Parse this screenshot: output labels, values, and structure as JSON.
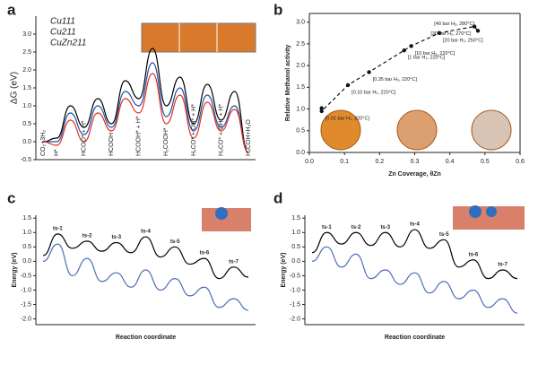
{
  "chart_data": [
    {
      "type": "line",
      "label": "a",
      "ylabel": "ΔG (eV)",
      "ylim": [
        -0.5,
        3.5
      ],
      "yticks": [
        {
          "value": -0.5,
          "label": "-0.5"
        },
        {
          "value": 0,
          "label": "0.0"
        },
        {
          "value": 0.5,
          "label": "0.5"
        },
        {
          "value": 1,
          "label": "1.0"
        },
        {
          "value": 1.5,
          "label": "1.5"
        },
        {
          "value": 2,
          "label": "2.0"
        },
        {
          "value": 2.5,
          "label": "2.5"
        },
        {
          "value": 3,
          "label": "3.0"
        }
      ],
      "categories": [
        "CO₂+3H₂",
        "H*",
        null,
        "HCOO* + H*",
        null,
        "HCOOH",
        null,
        "HCOOH* + H*",
        null,
        "H₂COOH*",
        null,
        "H₂CO* + OH* + H*",
        null,
        "H₃CO* + OH* + H*",
        null,
        "H₃COH+H₂O"
      ],
      "series": [
        {
          "name": "Cu111",
          "color": "#000000",
          "values": [
            0,
            0.1,
            1.0,
            0.4,
            1.2,
            0.5,
            1.7,
            1.2,
            2.6,
            1.0,
            1.8,
            0.5,
            1.6,
            0.6,
            1.4,
            -0.3
          ]
        },
        {
          "name": "Cu211",
          "color": "#1f4fa8",
          "values": [
            0,
            0.0,
            0.8,
            0.2,
            1.0,
            0.4,
            1.4,
            1.0,
            2.2,
            0.7,
            1.5,
            0.3,
            1.3,
            0.4,
            1.0,
            -0.3
          ]
        },
        {
          "name": "CuZn211",
          "color": "#e0301e",
          "values": [
            0,
            -0.1,
            0.6,
            0.0,
            0.8,
            0.3,
            1.2,
            0.8,
            1.9,
            0.5,
            1.3,
            0.1,
            1.1,
            0.3,
            0.9,
            -0.3
          ]
        }
      ]
    },
    {
      "type": "scatter",
      "label": "b",
      "xlabel": "Zn Coverage, θZn",
      "ylabel": "Relative Methanol activity",
      "xlim": [
        0,
        0.6
      ],
      "xticks": [
        {
          "value": 0,
          "label": "0.0"
        },
        0.1,
        0.2,
        0.3,
        0.4,
        0.5,
        0.6
      ],
      "ylim": [
        0,
        3.2
      ],
      "yticks": [
        {
          "value": 0,
          "label": "0.0"
        },
        0.5,
        {
          "value": 1,
          "label": "1.0"
        },
        1.5,
        {
          "value": 2,
          "label": "2.0"
        },
        2.5,
        {
          "value": 3,
          "label": "3.0"
        }
      ],
      "color": "#111111",
      "x": [
        0.035,
        0.035,
        0.11,
        0.17,
        0.27,
        0.29,
        0.37,
        0.47,
        0.48
      ],
      "values": [
        1.02,
        0.95,
        1.55,
        1.85,
        2.35,
        2.45,
        2.75,
        2.9,
        2.8
      ],
      "point_labels": [
        null,
        "[0.01 bar H₂, 220°C]",
        "[0.10 bar H₂, 220°C]",
        "[0.35 bar H₂, 220°C]",
        "[1 bar H₂, 220°C]",
        "[10 bar H₂, 220°C]",
        "[20 bar H₂, 250°C]",
        "[30 bar H₂, 270°C]",
        "[40 bar H₂, 280°C]"
      ]
    },
    {
      "type": "line",
      "label": "c",
      "ylabel": "Energy (eV)",
      "xlabel": "Reaction coordinate",
      "ylim": [
        -2.2,
        1.6
      ],
      "yticks": [
        {
          "value": -2,
          "label": "-2.0"
        },
        -1.5,
        {
          "value": -1,
          "label": "-1.0"
        },
        -0.5,
        {
          "value": 0,
          "label": "0.0"
        },
        0.5,
        {
          "value": 1,
          "label": "1.0"
        },
        1.5
      ],
      "categories": [
        null,
        "ts-1",
        null,
        "ts-2",
        null,
        "ts-3",
        null,
        "ts-4",
        null,
        "ts-5",
        null,
        "ts-6",
        null,
        "ts-7",
        null
      ],
      "series": [
        {
          "color": "#000000",
          "values": [
            0.2,
            0.95,
            0.45,
            0.7,
            0.35,
            0.65,
            0.3,
            0.85,
            0.15,
            0.5,
            -0.1,
            0.1,
            -0.6,
            -0.2,
            -0.55
          ]
        },
        {
          "color": "#4a6fb5",
          "values": [
            0.0,
            0.6,
            -0.5,
            0.1,
            -0.7,
            -0.4,
            -0.9,
            -0.3,
            -1.0,
            -0.6,
            -1.2,
            -0.9,
            -1.6,
            -1.3,
            -1.7
          ]
        }
      ]
    },
    {
      "type": "line",
      "label": "d",
      "ylabel": "Energy (eV)",
      "xlabel": "Reaction coordinate",
      "ylim": [
        -2.2,
        1.6
      ],
      "yticks": [
        {
          "value": -2,
          "label": "-2.0"
        },
        -1.5,
        {
          "value": -1,
          "label": "-1.0"
        },
        -0.5,
        {
          "value": 0,
          "label": "0.0"
        },
        0.5,
        {
          "value": 1,
          "label": "1.0"
        },
        1.5
      ],
      "categories": [
        null,
        "ts-1",
        null,
        "ts-2",
        null,
        "ts-3",
        null,
        "ts-4",
        null,
        "ts-5",
        null,
        "ts-6",
        null,
        "ts-7",
        null
      ],
      "series": [
        {
          "color": "#000000",
          "values": [
            0.3,
            1.0,
            0.6,
            1.0,
            0.55,
            1.0,
            0.5,
            1.1,
            0.45,
            0.75,
            -0.2,
            0.05,
            -0.6,
            -0.3,
            -0.6
          ]
        },
        {
          "color": "#4a6fb5",
          "values": [
            0.0,
            0.5,
            -0.2,
            0.25,
            -0.6,
            -0.3,
            -0.8,
            -0.4,
            -1.1,
            -0.7,
            -1.3,
            -1.0,
            -1.6,
            -1.3,
            -1.8
          ]
        }
      ]
    }
  ]
}
